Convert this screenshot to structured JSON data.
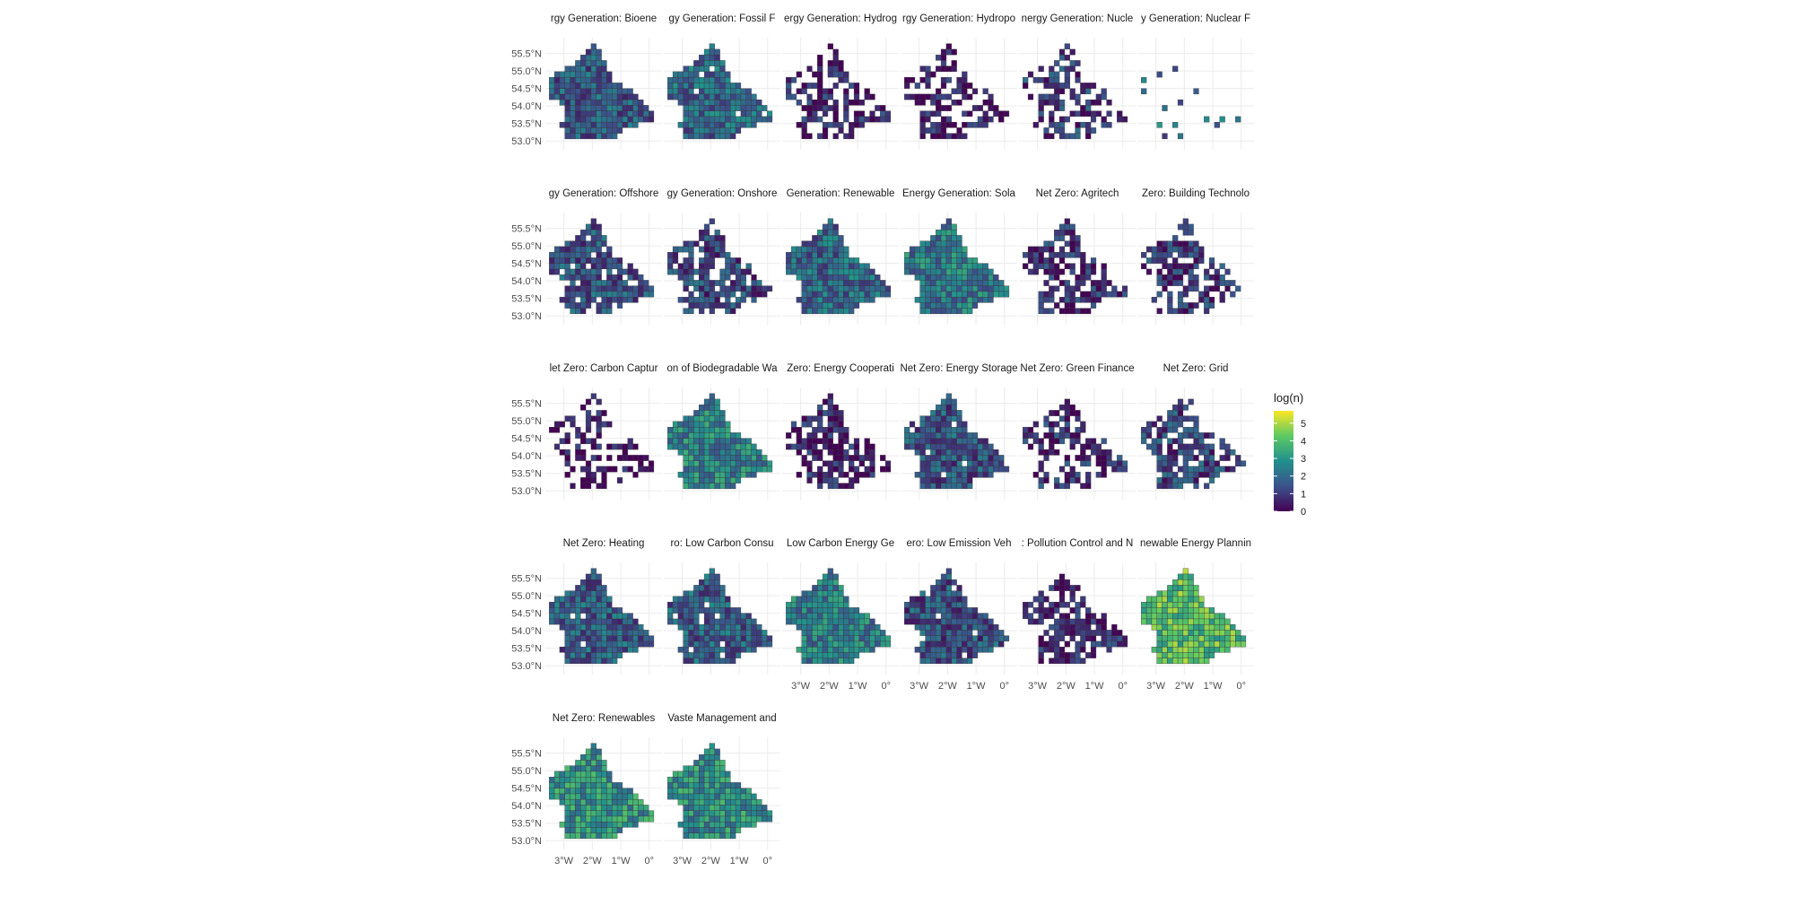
{
  "chart_data": {
    "type": "heatmap",
    "kind": "faceted choropleth map",
    "title": "",
    "xlabel": "",
    "ylabel": "",
    "grid": true,
    "legend": {
      "title": "log(n)",
      "position": "right",
      "ticks": [
        0,
        1,
        2,
        3,
        4,
        5
      ],
      "range": [
        0,
        5.7
      ],
      "palette": [
        "#440154",
        "#3b528b",
        "#21908d",
        "#5dc963",
        "#fde725"
      ]
    },
    "y_ticks": [
      "53.0°N",
      "53.5°N",
      "54.0°N",
      "54.5°N",
      "55.0°N",
      "55.5°N"
    ],
    "y_tick_values": [
      53.0,
      53.5,
      54.0,
      54.5,
      55.0,
      55.5
    ],
    "x_ticks": [
      "3°W",
      "2°W",
      "1°W",
      "0°"
    ],
    "x_tick_values": [
      -3,
      -2,
      -1,
      0
    ],
    "xlim": [
      -3.65,
      0.45
    ],
    "ylim": [
      52.75,
      55.95
    ],
    "facets": [
      {
        "label": "rgy Generation: Bioene",
        "level": 1.6,
        "coverage": 1.0,
        "seed": 1
      },
      {
        "label": "gy Generation: Fossil F",
        "level": 1.9,
        "coverage": 0.97,
        "seed": 2
      },
      {
        "label": "ergy Generation: Hydrog",
        "level": 0.6,
        "coverage": 0.58,
        "seed": 3
      },
      {
        "label": "rgy Generation: Hydropo",
        "level": 0.4,
        "coverage": 0.55,
        "seed": 4
      },
      {
        "label": "nergy Generation: Nucle",
        "level": 1.0,
        "coverage": 0.62,
        "seed": 5
      },
      {
        "label": "y Generation: Nuclear F",
        "level": 2.0,
        "coverage": 0.08,
        "seed": 6
      },
      {
        "label": "gy Generation: Offshore",
        "level": 1.5,
        "coverage": 0.9,
        "seed": 7
      },
      {
        "label": "gy Generation: Onshore",
        "level": 1.2,
        "coverage": 0.75,
        "seed": 8
      },
      {
        "label": "Generation: Renewable",
        "level": 1.9,
        "coverage": 1.0,
        "seed": 9
      },
      {
        "label": "Energy Generation: Sola",
        "level": 2.3,
        "coverage": 1.0,
        "seed": 10
      },
      {
        "label": "Net Zero: Agritech",
        "level": 0.7,
        "coverage": 0.66,
        "seed": 11
      },
      {
        "label": "Zero: Building Technolo",
        "level": 0.9,
        "coverage": 0.65,
        "seed": 12
      },
      {
        "label": "let Zero: Carbon Captur",
        "level": 0.2,
        "coverage": 0.45,
        "seed": 13
      },
      {
        "label": "on of Biodegradable Wa",
        "level": 2.5,
        "coverage": 1.0,
        "seed": 14
      },
      {
        "label": "Zero: Energy Cooperati",
        "level": 0.5,
        "coverage": 0.7,
        "seed": 15
      },
      {
        "label": "Net Zero: Energy Storage",
        "level": 1.5,
        "coverage": 0.95,
        "seed": 16
      },
      {
        "label": "Net Zero: Green Finance",
        "level": 0.8,
        "coverage": 0.55,
        "seed": 17
      },
      {
        "label": "Net Zero: Grid",
        "level": 1.2,
        "coverage": 0.75,
        "seed": 18
      },
      {
        "label": "Net Zero: Heating",
        "level": 1.7,
        "coverage": 0.98,
        "seed": 19
      },
      {
        "label": "ro: Low Carbon Consu",
        "level": 1.7,
        "coverage": 0.96,
        "seed": 20
      },
      {
        "label": "Low Carbon Energy Ge",
        "level": 2.4,
        "coverage": 1.0,
        "seed": 21
      },
      {
        "label": "ero: Low Emission Veh",
        "level": 1.4,
        "coverage": 0.95,
        "seed": 22
      },
      {
        "label": ": Pollution Control and N",
        "level": 0.6,
        "coverage": 0.72,
        "seed": 23
      },
      {
        "label": "newable Energy Plannin",
        "level": 4.0,
        "coverage": 1.0,
        "seed": 24
      },
      {
        "label": "Net Zero: Renewables",
        "level": 2.9,
        "coverage": 1.0,
        "seed": 25
      },
      {
        "label": "Vaste Management and",
        "level": 2.8,
        "coverage": 1.0,
        "seed": 26
      }
    ]
  }
}
